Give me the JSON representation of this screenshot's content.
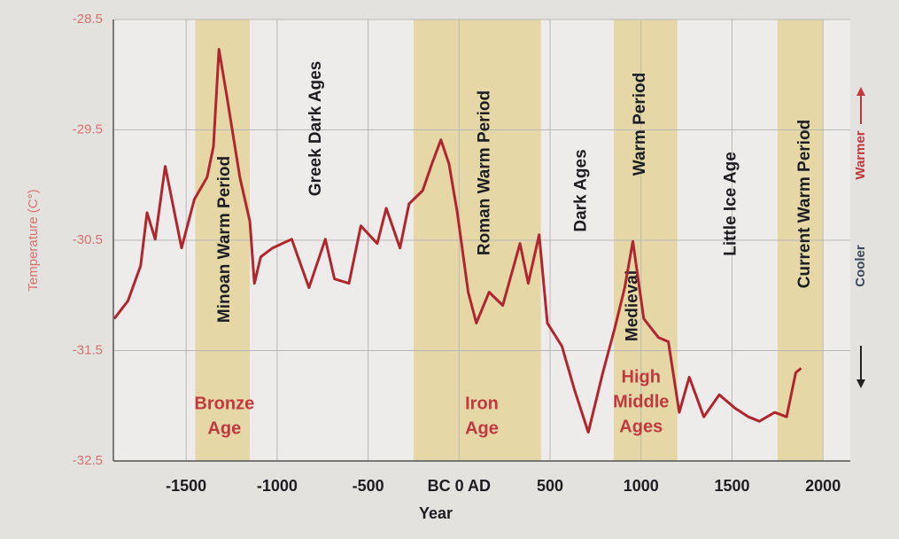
{
  "chart_data": {
    "type": "line",
    "x_label": "Year",
    "y_label": "Temperature (C°)",
    "y2_labels": [
      "Cooler",
      "Warmer"
    ],
    "xlim": [
      -1900,
      2150
    ],
    "ylim": [
      -32.5,
      -28.5
    ],
    "xticks": [
      -1500,
      -1000,
      -500,
      {
        "value": 0,
        "label": "BC 0 AD"
      },
      500,
      1000,
      1500,
      2000
    ],
    "yticks": [
      -28.5,
      -29.5,
      -30.5,
      -31.5,
      -32.5
    ],
    "grid": true,
    "bands": [
      {
        "start": -1450,
        "end": -1150
      },
      {
        "start": -250,
        "end": 450
      },
      {
        "start": 850,
        "end": 1200
      },
      {
        "start": 1750,
        "end": 2000
      }
    ],
    "band_color": "#e6d8a6",
    "vertical_labels": [
      {
        "text": "Minoan Warm Period",
        "x": -1286
      },
      {
        "text": "Greek Dark Ages",
        "x": -786
      },
      {
        "text": "Roman Warm Period",
        "x": 143
      },
      {
        "text": "Dark Ages",
        "x": 672
      },
      {
        "text": "Medieval",
        "x": 956
      },
      {
        "text": "Warm Period",
        "x": 996
      },
      {
        "text": "Little Ice Age",
        "x": 1495
      },
      {
        "text": "Current Warm Period",
        "x": 1902
      }
    ],
    "era_labels": [
      {
        "lines": [
          "Bronze",
          "Age"
        ],
        "x": -1290
      },
      {
        "lines": [
          "Iron",
          "Age"
        ],
        "x": 125
      },
      {
        "lines": [
          "High",
          "Middle",
          "Ages"
        ],
        "x": 1000
      }
    ],
    "series": [
      {
        "color": "#b0262e",
        "x": [
          -1895,
          -1820,
          -1750,
          -1715,
          -1670,
          -1615,
          -1525,
          -1455,
          -1385,
          -1350,
          -1320,
          -1275,
          -1205,
          -1150,
          -1125,
          -1090,
          -1025,
          -920,
          -825,
          -735,
          -685,
          -605,
          -540,
          -450,
          -400,
          -325,
          -275,
          -200,
          -150,
          -100,
          -55,
          -10,
          50,
          95,
          165,
          240,
          335,
          380,
          440,
          485,
          565,
          635,
          710,
          790,
          855,
          910,
          955,
          1015,
          1095,
          1150,
          1210,
          1265,
          1345,
          1430,
          1515,
          1590,
          1650,
          1735,
          1800,
          1850,
          1880
        ],
        "values": [
          -31.21,
          -31.05,
          -30.73,
          -30.25,
          -30.49,
          -29.83,
          -30.57,
          -30.13,
          -29.93,
          -29.65,
          -28.77,
          -29.21,
          -29.93,
          -30.33,
          -30.89,
          -30.65,
          -30.57,
          -30.49,
          -30.93,
          -30.49,
          -30.85,
          -30.89,
          -30.37,
          -30.53,
          -30.21,
          -30.57,
          -30.17,
          -30.05,
          -29.81,
          -29.59,
          -29.81,
          -30.25,
          -30.97,
          -31.25,
          -30.97,
          -31.09,
          -30.53,
          -30.89,
          -30.45,
          -31.25,
          -31.46,
          -31.86,
          -32.24,
          -31.7,
          -31.3,
          -30.93,
          -30.51,
          -31.21,
          -31.38,
          -31.42,
          -32.06,
          -31.74,
          -32.1,
          -31.9,
          -32.02,
          -32.1,
          -32.14,
          -32.06,
          -32.1,
          -31.7,
          -31.66
        ]
      }
    ]
  }
}
